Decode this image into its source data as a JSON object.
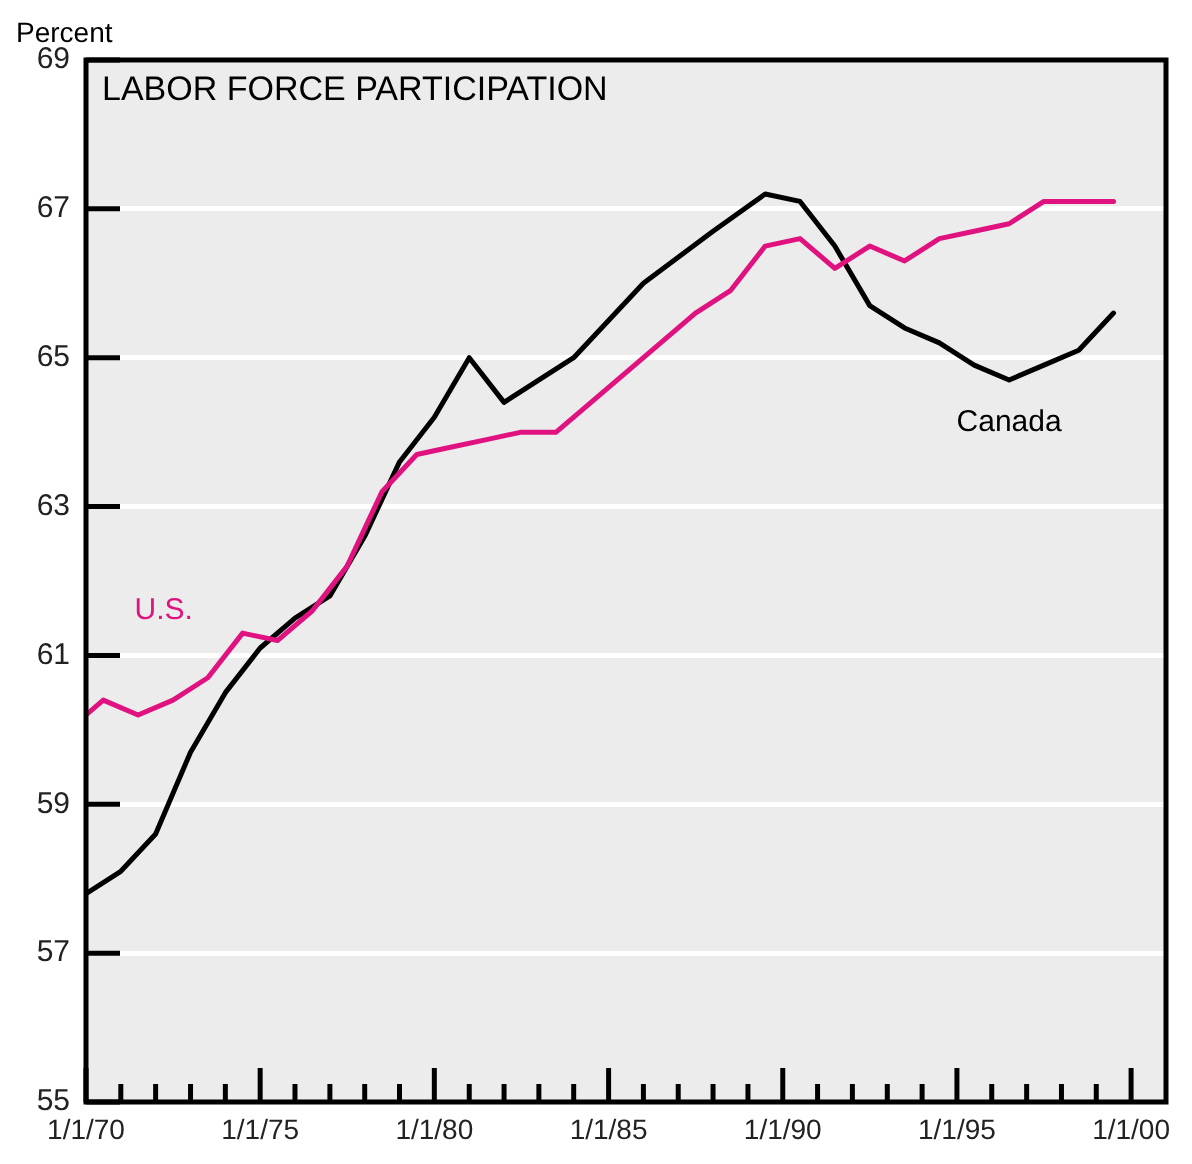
{
  "chart_data": {
    "type": "line",
    "title": "LABOR FORCE PARTICIPATION",
    "ylabel": "Percent",
    "xlim": [
      "1970-01-01",
      "2001-01-01"
    ],
    "xticks": [
      {
        "value": "1970-01-01",
        "label": "1/1/70"
      },
      {
        "value": "1971-01-01",
        "label": null
      },
      {
        "value": "1972-01-01",
        "label": null
      },
      {
        "value": "1973-01-01",
        "label": null
      },
      {
        "value": "1974-01-01",
        "label": null
      },
      {
        "value": "1975-01-01",
        "label": "1/1/75"
      },
      {
        "value": "1976-01-01",
        "label": null
      },
      {
        "value": "1977-01-01",
        "label": null
      },
      {
        "value": "1978-01-01",
        "label": null
      },
      {
        "value": "1979-01-01",
        "label": null
      },
      {
        "value": "1980-01-01",
        "label": "1/1/80"
      },
      {
        "value": "1981-01-01",
        "label": null
      },
      {
        "value": "1982-01-01",
        "label": null
      },
      {
        "value": "1983-01-01",
        "label": null
      },
      {
        "value": "1984-01-01",
        "label": null
      },
      {
        "value": "1985-01-01",
        "label": "1/1/85"
      },
      {
        "value": "1986-01-01",
        "label": null
      },
      {
        "value": "1987-01-01",
        "label": null
      },
      {
        "value": "1988-01-01",
        "label": null
      },
      {
        "value": "1989-01-01",
        "label": null
      },
      {
        "value": "1990-01-01",
        "label": "1/1/90"
      },
      {
        "value": "1991-01-01",
        "label": null
      },
      {
        "value": "1992-01-01",
        "label": null
      },
      {
        "value": "1993-01-01",
        "label": null
      },
      {
        "value": "1994-01-01",
        "label": null
      },
      {
        "value": "1995-01-01",
        "label": "1/1/95"
      },
      {
        "value": "1996-01-01",
        "label": null
      },
      {
        "value": "1997-01-01",
        "label": null
      },
      {
        "value": "1998-01-01",
        "label": null
      },
      {
        "value": "1999-01-01",
        "label": null
      },
      {
        "value": "2000-01-01",
        "label": "1/1/00"
      }
    ],
    "ylim": [
      55,
      69
    ],
    "yticks": [
      55,
      57,
      59,
      61,
      63,
      65,
      67,
      69
    ],
    "grid": "y",
    "legend": false,
    "marker": "none",
    "line_style": "solid",
    "series": [
      {
        "name": "U.S.",
        "color": "#e0127f",
        "x": [
          "1970-01-01",
          "1970-07-01",
          "1971-07-01",
          "1972-07-01",
          "1973-07-01",
          "1974-07-01",
          "1975-07-01",
          "1976-07-01",
          "1977-07-01",
          "1978-07-01",
          "1979-07-01",
          "1980-07-01",
          "1981-07-01",
          "1982-07-01",
          "1983-07-01",
          "1984-07-01",
          "1985-07-01",
          "1986-07-01",
          "1987-07-01",
          "1988-07-01",
          "1989-07-01",
          "1990-07-01",
          "1991-07-01",
          "1992-07-01",
          "1993-07-01",
          "1994-07-01",
          "1995-07-01",
          "1996-07-01",
          "1997-07-01",
          "1998-07-01",
          "1999-07-01"
        ],
        "values": [
          60.2,
          60.4,
          60.2,
          60.4,
          60.7,
          61.3,
          61.2,
          61.6,
          62.2,
          63.2,
          63.7,
          63.8,
          63.9,
          64.0,
          64.0,
          64.4,
          64.8,
          65.2,
          65.6,
          65.9,
          66.5,
          66.6,
          66.2,
          66.5,
          66.3,
          66.6,
          66.7,
          66.8,
          67.1,
          67.1,
          67.1
        ]
      },
      {
        "name": "Canada",
        "color": "#000000",
        "x": [
          "1970-01-01",
          "1971-01-01",
          "1972-01-01",
          "1973-01-01",
          "1974-01-01",
          "1975-01-01",
          "1976-01-01",
          "1977-01-01",
          "1978-01-01",
          "1979-01-01",
          "1980-01-01",
          "1981-01-01",
          "1982-01-01",
          "1984-01-01",
          "1986-01-01",
          "1988-01-01",
          "1989-07-01",
          "1990-07-01",
          "1991-07-01",
          "1992-07-01",
          "1993-07-01",
          "1994-07-01",
          "1995-07-01",
          "1996-07-01",
          "1997-07-01",
          "1998-07-01",
          "1999-07-01"
        ],
        "values": [
          57.8,
          58.1,
          58.6,
          59.7,
          60.5,
          61.1,
          61.5,
          61.8,
          62.6,
          63.6,
          64.2,
          65.0,
          64.4,
          65.0,
          66.0,
          66.7,
          67.2,
          67.1,
          66.5,
          65.7,
          65.4,
          65.2,
          64.9,
          64.7,
          64.9,
          65.1,
          65.6
        ]
      }
    ]
  }
}
